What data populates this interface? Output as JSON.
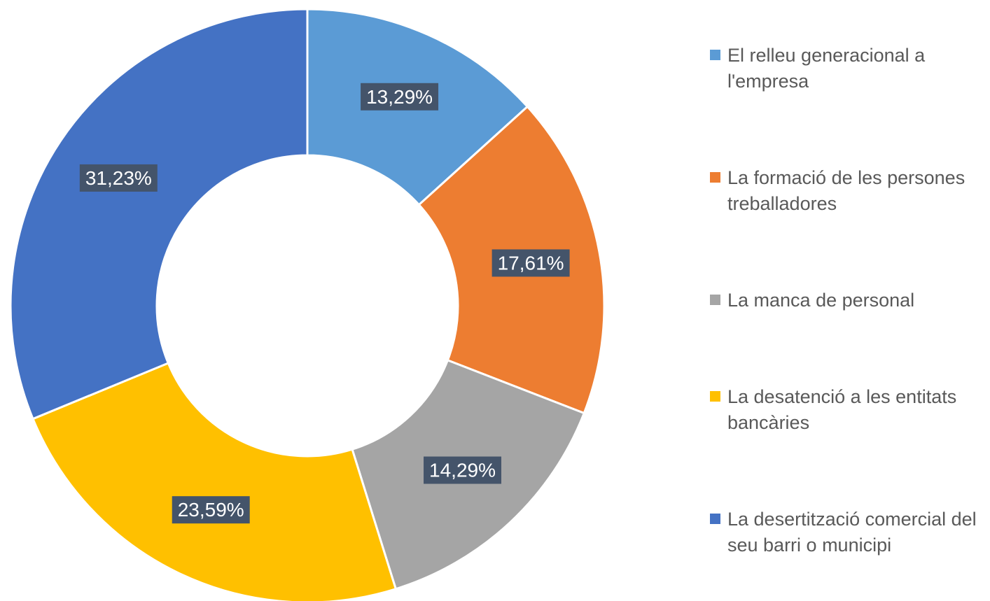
{
  "chart_data": {
    "type": "donut",
    "categories": [
      "El relleu generacional a l'empresa",
      "La formació de les persones treballadores",
      "La manca de personal",
      "La desatenció a les entitats bancàries",
      "La desertització comercial del seu barri o municipi"
    ],
    "values": [
      13.29,
      17.61,
      14.29,
      23.59,
      31.23
    ],
    "value_labels": [
      "13,29%",
      "17,61%",
      "14,29%",
      "23,59%",
      "31,23%"
    ],
    "colors": [
      "#5b9bd5",
      "#ed7d31",
      "#a5a5a5",
      "#ffc000",
      "#4472c4"
    ],
    "legend": "right"
  }
}
